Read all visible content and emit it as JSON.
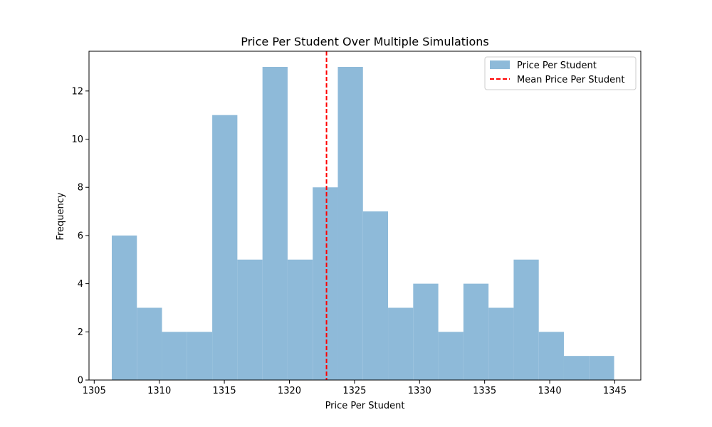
{
  "chart_data": {
    "type": "bar",
    "title": "Price Per Student Over Multiple Simulations",
    "xlabel": "Price Per Student",
    "ylabel": "Frequency",
    "xlim": [
      1304.6,
      1347.0
    ],
    "ylim": [
      0,
      13.65
    ],
    "xticks": [
      1305,
      1310,
      1315,
      1320,
      1325,
      1330,
      1335,
      1340,
      1345
    ],
    "yticks": [
      0,
      2,
      4,
      6,
      8,
      10,
      12
    ],
    "bin_edges": [
      1306.35,
      1308.28,
      1310.21,
      1312.14,
      1314.07,
      1316.0,
      1317.93,
      1319.86,
      1321.79,
      1323.72,
      1325.65,
      1327.58,
      1329.51,
      1331.44,
      1333.37,
      1335.3,
      1337.23,
      1339.16,
      1341.09,
      1343.02,
      1344.95
    ],
    "series": [
      {
        "name": "Price Per Student",
        "color": "#8ebad9",
        "values": [
          6,
          3,
          2,
          2,
          11,
          5,
          13,
          5,
          8,
          13,
          7,
          3,
          4,
          2,
          4,
          3,
          5,
          2,
          1,
          1
        ]
      }
    ],
    "mean_line": {
      "name": "Mean Price Per Student",
      "value": 1322.85,
      "color": "#ff0000",
      "style": "dashed"
    },
    "legend": {
      "placement": "top-right",
      "entries": [
        "Price Per Student",
        "Mean Price Per Student"
      ]
    },
    "grid": false
  }
}
